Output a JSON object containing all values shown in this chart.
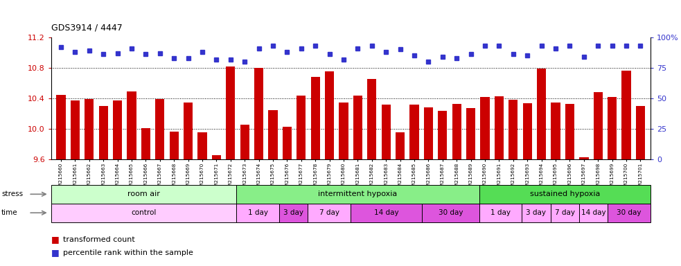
{
  "title": "GDS3914 / 4447",
  "samples": [
    "GSM215660",
    "GSM215661",
    "GSM215662",
    "GSM215663",
    "GSM215664",
    "GSM215665",
    "GSM215666",
    "GSM215667",
    "GSM215668",
    "GSM215669",
    "GSM215670",
    "GSM215671",
    "GSM215672",
    "GSM215673",
    "GSM215674",
    "GSM215675",
    "GSM215676",
    "GSM215677",
    "GSM215678",
    "GSM215679",
    "GSM215680",
    "GSM215681",
    "GSM215682",
    "GSM215683",
    "GSM215684",
    "GSM215685",
    "GSM215686",
    "GSM215687",
    "GSM215688",
    "GSM215689",
    "GSM215690",
    "GSM215691",
    "GSM215692",
    "GSM215693",
    "GSM215694",
    "GSM215695",
    "GSM215696",
    "GSM215697",
    "GSM215698",
    "GSM215699",
    "GSM215700",
    "GSM215701"
  ],
  "bar_values": [
    10.45,
    10.37,
    10.39,
    10.3,
    10.37,
    10.49,
    10.01,
    10.39,
    9.97,
    10.35,
    9.96,
    9.66,
    10.82,
    10.06,
    10.8,
    10.25,
    10.03,
    10.44,
    10.68,
    10.75,
    10.35,
    10.44,
    10.65,
    10.32,
    9.96,
    10.32,
    10.28,
    10.24,
    10.33,
    10.27,
    10.42,
    10.43,
    10.38,
    10.34,
    10.79,
    10.35,
    10.33,
    9.63,
    10.48,
    10.42,
    10.76,
    10.3
  ],
  "percentile_values_pct": [
    92,
    88,
    89,
    86,
    87,
    91,
    86,
    87,
    83,
    83,
    88,
    82,
    82,
    80,
    91,
    93,
    88,
    91,
    93,
    86,
    82,
    91,
    93,
    88,
    90,
    85,
    80,
    84,
    83,
    86,
    93,
    93,
    86,
    85,
    93,
    91,
    93,
    84,
    93,
    93,
    93,
    93
  ],
  "bar_color": "#cc0000",
  "dot_color": "#3333cc",
  "ylim_left": [
    9.6,
    11.2
  ],
  "yticks_left": [
    9.6,
    10.0,
    10.4,
    10.8,
    11.2
  ],
  "yticks_right": [
    0,
    25,
    50,
    75,
    100
  ],
  "stress_groups": [
    {
      "label": "room air",
      "start": 0,
      "end": 13,
      "color": "#ccffcc"
    },
    {
      "label": "intermittent hypoxia",
      "start": 13,
      "end": 30,
      "color": "#88ee88"
    },
    {
      "label": "sustained hypoxia",
      "start": 30,
      "end": 42,
      "color": "#55dd55"
    }
  ],
  "time_groups": [
    {
      "label": "control",
      "start": 0,
      "end": 13,
      "color": "#ffccff"
    },
    {
      "label": "1 day",
      "start": 13,
      "end": 16,
      "color": "#ffaaff"
    },
    {
      "label": "3 day",
      "start": 16,
      "end": 18,
      "color": "#dd55dd"
    },
    {
      "label": "7 day",
      "start": 18,
      "end": 21,
      "color": "#ffaaff"
    },
    {
      "label": "14 day",
      "start": 21,
      "end": 26,
      "color": "#dd55dd"
    },
    {
      "label": "30 day",
      "start": 26,
      "end": 30,
      "color": "#dd55dd"
    },
    {
      "label": "1 day",
      "start": 30,
      "end": 33,
      "color": "#ffaaff"
    },
    {
      "label": "3 day",
      "start": 33,
      "end": 35,
      "color": "#ffaaff"
    },
    {
      "label": "7 day",
      "start": 35,
      "end": 37,
      "color": "#ffaaff"
    },
    {
      "label": "14 day",
      "start": 37,
      "end": 39,
      "color": "#ffaaff"
    },
    {
      "label": "30 day",
      "start": 39,
      "end": 42,
      "color": "#dd55dd"
    }
  ]
}
